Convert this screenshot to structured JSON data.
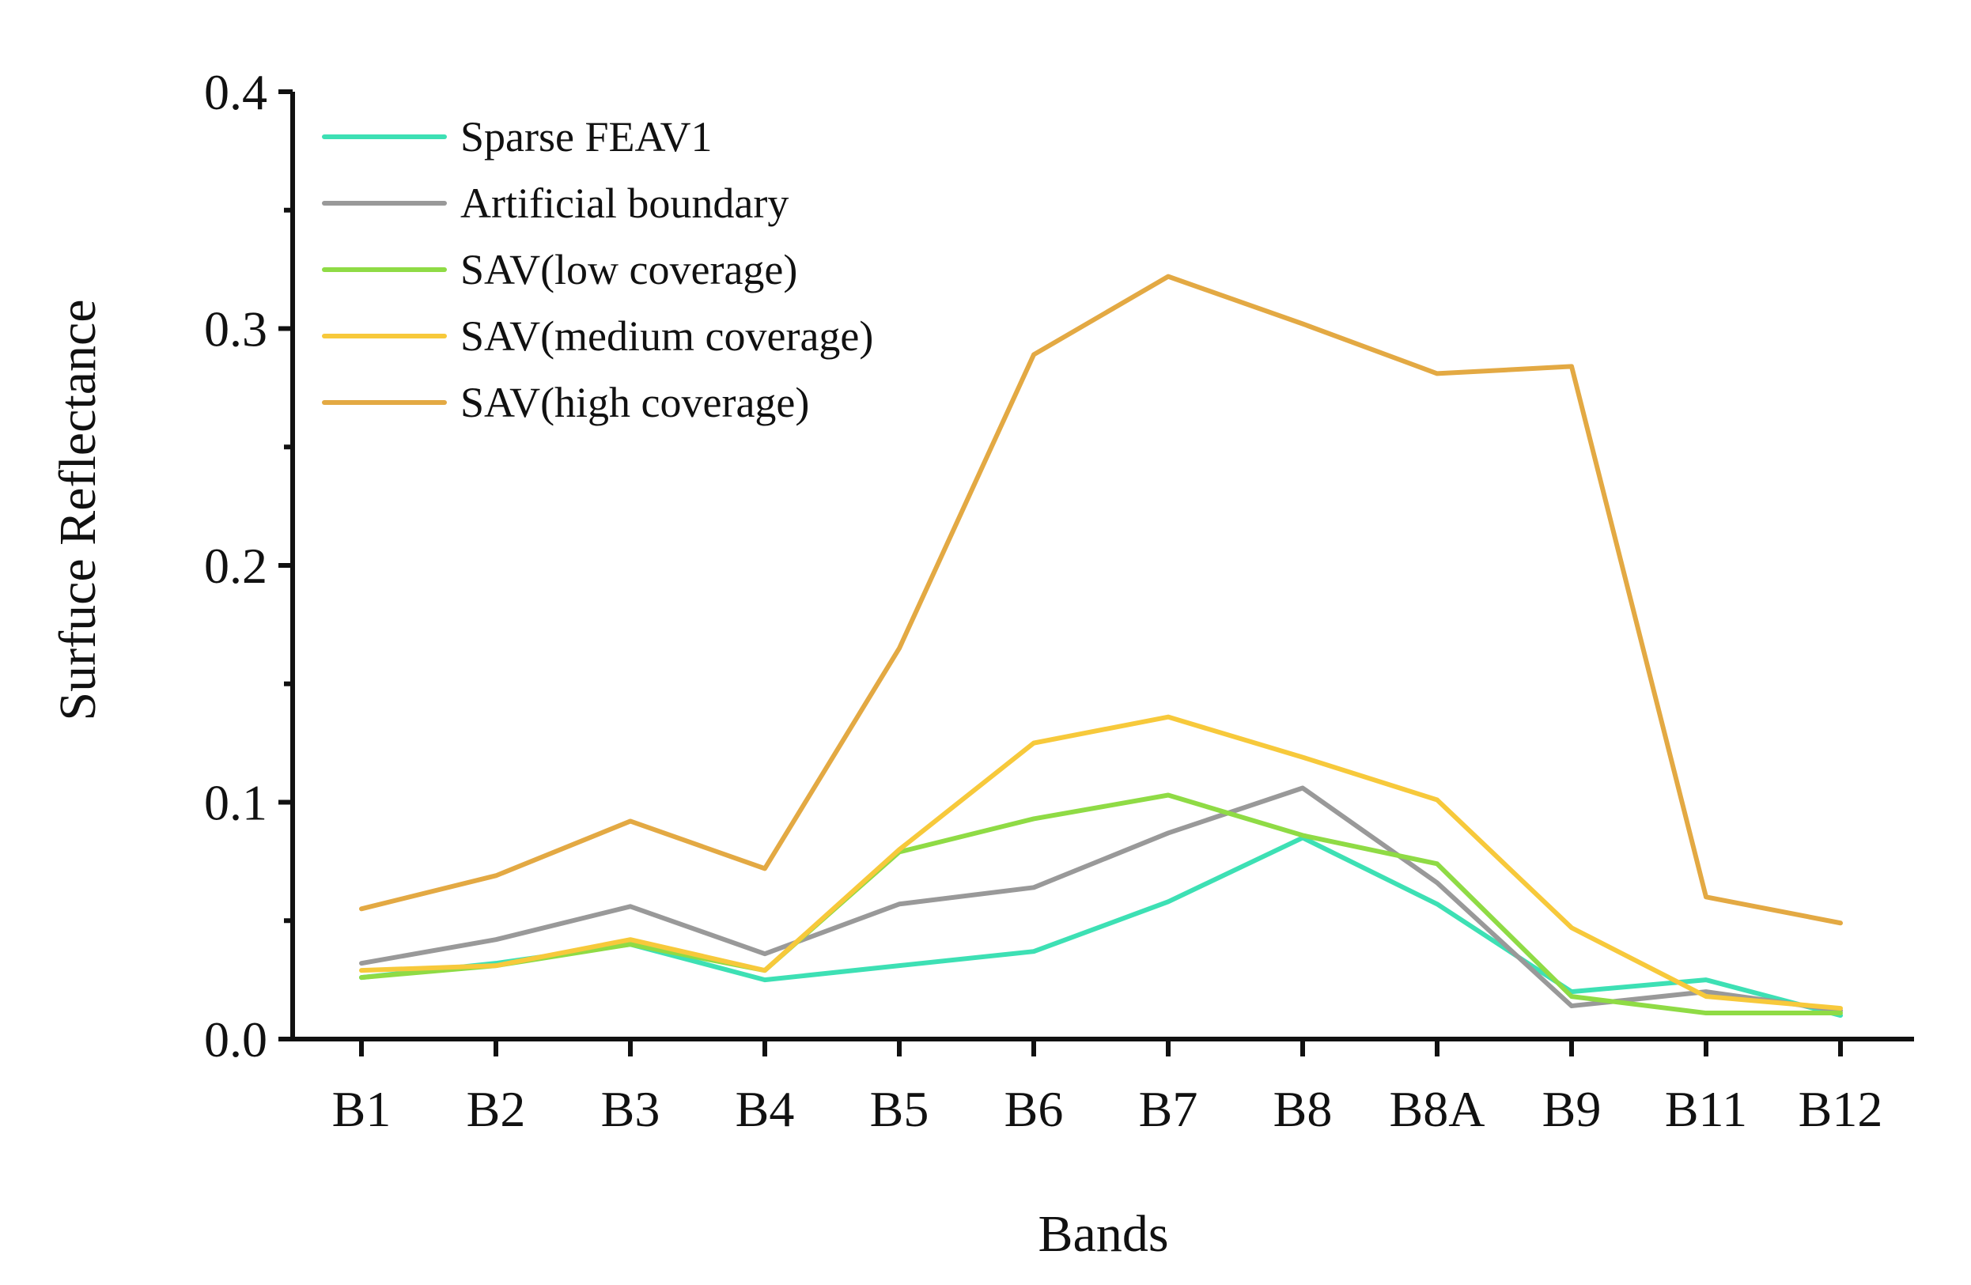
{
  "chart_data": {
    "type": "line",
    "title": "",
    "xlabel": "Bands",
    "ylabel": "Surfuce Reflectance",
    "categories": [
      "B1",
      "B2",
      "B3",
      "B4",
      "B5",
      "B6",
      "B7",
      "B8",
      "B8A",
      "B9",
      "B11",
      "B12"
    ],
    "ylim": [
      0,
      0.4
    ],
    "yticks": [
      "0.0",
      "0.1",
      "0.2",
      "0.3",
      "0.4"
    ],
    "ytick_values": [
      0,
      0.1,
      0.2,
      0.3,
      0.4
    ],
    "legend_position": "top-left",
    "grid": false,
    "series": [
      {
        "name": "Sparse FEAV1",
        "color": "#3de0b4",
        "values": [
          0.026,
          0.032,
          0.04,
          0.025,
          0.031,
          0.037,
          0.058,
          0.085,
          0.057,
          0.02,
          0.025,
          0.01
        ]
      },
      {
        "name": "Artificial boundary",
        "color": "#999999",
        "values": [
          0.032,
          0.042,
          0.056,
          0.036,
          0.057,
          0.064,
          0.087,
          0.106,
          0.066,
          0.014,
          0.02,
          0.012
        ]
      },
      {
        "name": "SAV(low coverage)",
        "color": "#8fdb45",
        "values": [
          0.026,
          0.031,
          0.04,
          0.029,
          0.079,
          0.093,
          0.103,
          0.086,
          0.074,
          0.018,
          0.011,
          0.011
        ]
      },
      {
        "name": "SAV(medium coverage)",
        "color": "#f7c93b",
        "values": [
          0.029,
          0.031,
          0.042,
          0.029,
          0.08,
          0.125,
          0.136,
          0.119,
          0.101,
          0.047,
          0.018,
          0.013
        ]
      },
      {
        "name": "SAV(high coverage)",
        "color": "#e3a943",
        "values": [
          0.055,
          0.069,
          0.092,
          0.072,
          0.165,
          0.289,
          0.322,
          0.302,
          0.281,
          0.284,
          0.06,
          0.049
        ]
      }
    ]
  }
}
